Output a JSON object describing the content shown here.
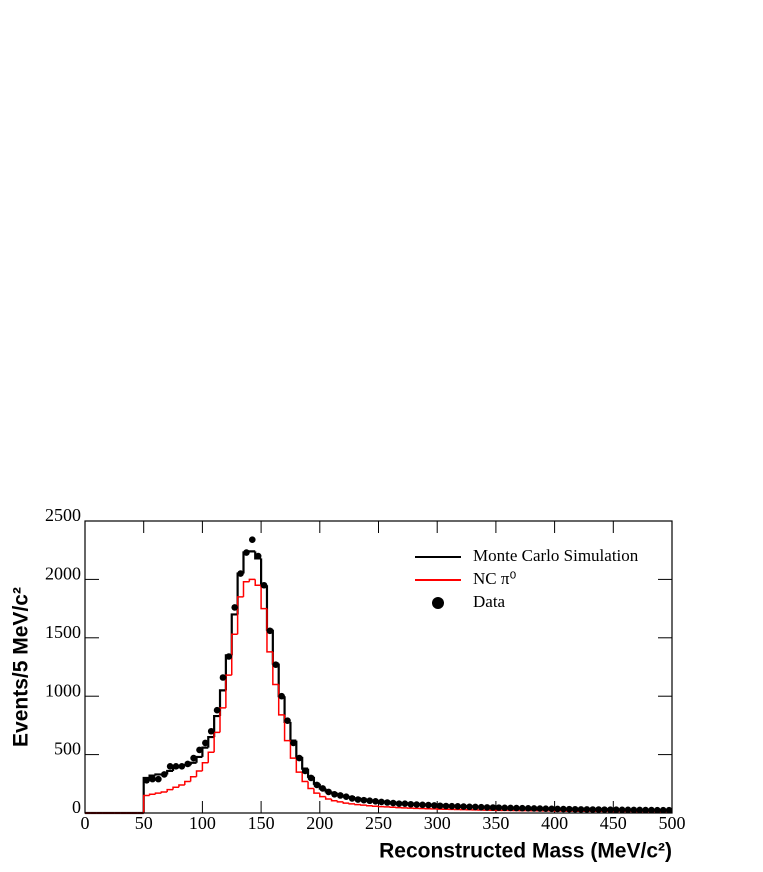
{
  "chart_data": {
    "type": "histogram",
    "xlabel": "Reconstructed Mass (MeV/c²)",
    "ylabel": "Events/5 MeV/c²",
    "bins": [
      0,
      5,
      10,
      15,
      20,
      25,
      30,
      35,
      40,
      45,
      50,
      55,
      60,
      65,
      70,
      75,
      80,
      85,
      90,
      95,
      100,
      105,
      110,
      115,
      120,
      125,
      130,
      135,
      140,
      145,
      150,
      155,
      160,
      165,
      170,
      175,
      180,
      185,
      190,
      195,
      200,
      205,
      210,
      215,
      220,
      225,
      230,
      235,
      240,
      245,
      250,
      255,
      260,
      265,
      270,
      275,
      280,
      285,
      290,
      295,
      300,
      305,
      310,
      315,
      320,
      325,
      330,
      335,
      340,
      345,
      350,
      355,
      360,
      365,
      370,
      375,
      380,
      385,
      390,
      395,
      400,
      405,
      410,
      415,
      420,
      425,
      430,
      435,
      440,
      445,
      450,
      455,
      460,
      465,
      470,
      475,
      480,
      485,
      490,
      495,
      500
    ],
    "xlim": [
      0,
      500
    ],
    "xticks": [
      0,
      50,
      100,
      150,
      200,
      250,
      300,
      350,
      400,
      450,
      500
    ],
    "ylim": [
      0,
      2500
    ],
    "yticks": [
      0,
      500,
      1000,
      1500,
      2000,
      2500
    ],
    "legend": "top-right",
    "series": [
      {
        "name": "Monte Carlo Simulation",
        "color": "#000000",
        "style": "step",
        "values": [
          0,
          0,
          0,
          0,
          0,
          0,
          0,
          0,
          0,
          0,
          300,
          320,
          330,
          330,
          360,
          390,
          400,
          410,
          430,
          480,
          560,
          650,
          830,
          1050,
          1350,
          1700,
          2050,
          2230,
          2240,
          2180,
          1950,
          1570,
          1280,
          1000,
          780,
          620,
          480,
          380,
          310,
          250,
          210,
          185,
          170,
          155,
          145,
          135,
          125,
          120,
          112,
          105,
          100,
          95,
          92,
          88,
          85,
          82,
          78,
          75,
          72,
          70,
          67,
          65,
          63,
          61,
          59,
          57,
          55,
          53,
          51,
          50,
          48,
          47,
          46,
          44,
          43,
          42,
          41,
          40,
          39,
          38,
          37,
          36,
          35,
          34,
          33,
          32,
          31,
          31,
          30,
          30,
          29,
          28,
          28,
          27,
          27,
          26,
          26,
          25,
          25,
          24
        ]
      },
      {
        "name": "NC π⁰",
        "color": "#ff0000",
        "style": "step",
        "values": [
          0,
          0,
          0,
          0,
          0,
          0,
          0,
          0,
          0,
          0,
          150,
          160,
          170,
          180,
          200,
          220,
          240,
          270,
          310,
          360,
          430,
          520,
          690,
          900,
          1180,
          1530,
          1850,
          1980,
          2000,
          1950,
          1750,
          1380,
          1100,
          840,
          620,
          470,
          350,
          270,
          210,
          170,
          140,
          120,
          105,
          95,
          85,
          78,
          72,
          67,
          62,
          58,
          55,
          52,
          49,
          46,
          44,
          42,
          40,
          38,
          36,
          35,
          33,
          32,
          31,
          30,
          29,
          28,
          27,
          26,
          25,
          24,
          23,
          22,
          22,
          21,
          20,
          20,
          19,
          19,
          18,
          18,
          17,
          17,
          16,
          16,
          15,
          15,
          15,
          14,
          14,
          14,
          13,
          13,
          13,
          13,
          12,
          12,
          12,
          12,
          11,
          11
        ]
      },
      {
        "name": "Data",
        "color": "#000000",
        "style": "points",
        "values": [
          null,
          null,
          null,
          null,
          null,
          null,
          null,
          null,
          null,
          null,
          280,
          290,
          290,
          330,
          400,
          400,
          400,
          420,
          470,
          540,
          600,
          700,
          880,
          1160,
          1340,
          1760,
          2050,
          2230,
          2340,
          2200,
          1950,
          1560,
          1270,
          1000,
          790,
          600,
          470,
          360,
          300,
          240,
          210,
          180,
          160,
          150,
          140,
          125,
          115,
          110,
          105,
          100,
          95,
          90,
          85,
          80,
          80,
          75,
          72,
          70,
          68,
          65,
          62,
          60,
          58,
          57,
          55,
          53,
          52,
          50,
          48,
          47,
          46,
          44,
          43,
          42,
          41,
          40,
          39,
          38,
          37,
          36,
          35,
          34,
          33,
          32,
          31,
          31,
          30,
          30,
          29,
          28,
          28,
          27,
          27,
          26,
          26,
          25,
          25,
          24,
          24,
          24
        ]
      }
    ]
  }
}
